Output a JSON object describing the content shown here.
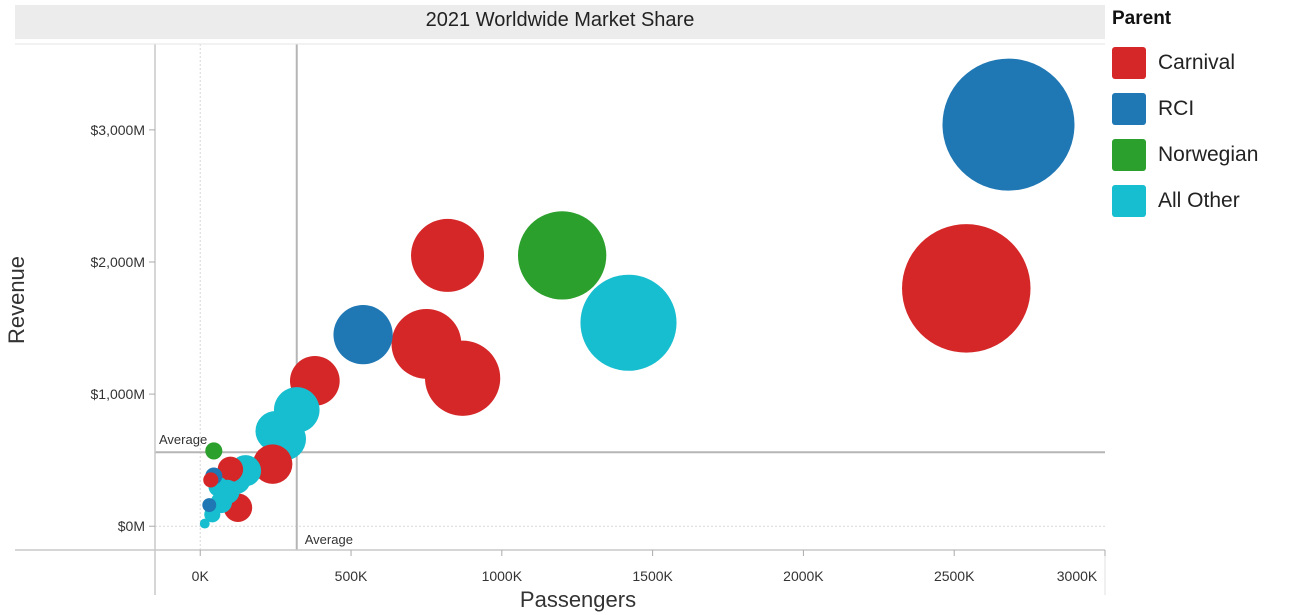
{
  "legend": {
    "title": "Parent",
    "items": [
      {
        "label": "Carnival",
        "color": "#d62728"
      },
      {
        "label": "RCI",
        "color": "#1f77b4"
      },
      {
        "label": "Norwegian",
        "color": "#2ca02c"
      },
      {
        "label": "All Other",
        "color": "#17becf"
      }
    ]
  },
  "chart_data": {
    "type": "scatter",
    "title": "2021 Worldwide Market Share",
    "xlabel": "Passengers",
    "ylabel": "Revenue",
    "x_ticks": [
      {
        "value": 0,
        "label": "0K"
      },
      {
        "value": 500,
        "label": "500K"
      },
      {
        "value": 1000,
        "label": "1000K"
      },
      {
        "value": 1500,
        "label": "1500K"
      },
      {
        "value": 2000,
        "label": "2000K"
      },
      {
        "value": 2500,
        "label": "2500K"
      },
      {
        "value": 3000,
        "label": "3000K"
      }
    ],
    "y_ticks": [
      {
        "value": 0,
        "label": "$0M"
      },
      {
        "value": 1000,
        "label": "$1,000M"
      },
      {
        "value": 2000,
        "label": "$2,000M"
      },
      {
        "value": 3000,
        "label": "$3,000M"
      }
    ],
    "xlim": [
      -150,
      3000
    ],
    "ylim": [
      -180,
      3650
    ],
    "x_unit": "K passengers",
    "y_unit": "$M",
    "reference_lines": [
      {
        "axis": "x",
        "value": 320,
        "label": "Average"
      },
      {
        "axis": "y",
        "value": 560,
        "label": "Average"
      }
    ],
    "series": [
      {
        "name": "Carnival",
        "color": "#d62728",
        "points": [
          {
            "x": 2540,
            "y": 1800,
            "size": 2540
          },
          {
            "x": 820,
            "y": 2050,
            "size": 820
          },
          {
            "x": 750,
            "y": 1380,
            "size": 750
          },
          {
            "x": 870,
            "y": 1120,
            "size": 870
          },
          {
            "x": 380,
            "y": 1100,
            "size": 380
          },
          {
            "x": 240,
            "y": 470,
            "size": 240
          },
          {
            "x": 100,
            "y": 430,
            "size": 100
          },
          {
            "x": 125,
            "y": 140,
            "size": 125
          },
          {
            "x": 35,
            "y": 350,
            "size": 35
          }
        ]
      },
      {
        "name": "RCI",
        "color": "#1f77b4",
        "points": [
          {
            "x": 2680,
            "y": 3040,
            "size": 2680
          },
          {
            "x": 540,
            "y": 1450,
            "size": 540
          },
          {
            "x": 30,
            "y": 160,
            "size": 30
          },
          {
            "x": 45,
            "y": 380,
            "size": 45
          }
        ]
      },
      {
        "name": "Norwegian",
        "color": "#2ca02c",
        "points": [
          {
            "x": 1200,
            "y": 2050,
            "size": 1200
          },
          {
            "x": 45,
            "y": 570,
            "size": 45
          }
        ]
      },
      {
        "name": "All Other",
        "color": "#17becf",
        "points": [
          {
            "x": 1420,
            "y": 1540,
            "size": 1420
          },
          {
            "x": 320,
            "y": 880,
            "size": 320
          },
          {
            "x": 280,
            "y": 660,
            "size": 280
          },
          {
            "x": 250,
            "y": 720,
            "size": 250
          },
          {
            "x": 150,
            "y": 420,
            "size": 150
          },
          {
            "x": 90,
            "y": 260,
            "size": 90
          },
          {
            "x": 70,
            "y": 180,
            "size": 70
          },
          {
            "x": 40,
            "y": 90,
            "size": 40
          },
          {
            "x": 15,
            "y": 20,
            "size": 15
          },
          {
            "x": 120,
            "y": 350,
            "size": 120
          },
          {
            "x": 60,
            "y": 300,
            "size": 60
          }
        ]
      }
    ]
  }
}
